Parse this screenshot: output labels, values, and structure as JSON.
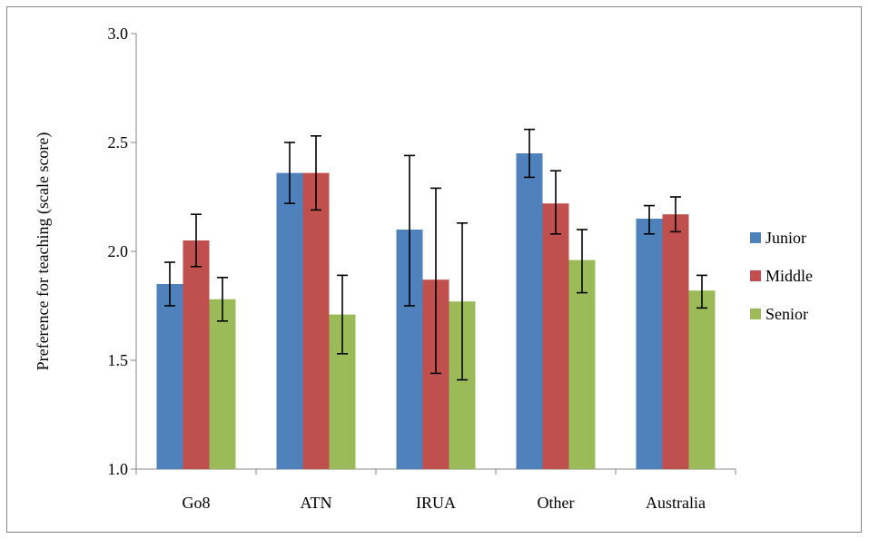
{
  "chart_data": {
    "type": "bar",
    "ylabel": "Preference for teaching  (scale score)",
    "ylim": [
      1.0,
      3.0
    ],
    "yticks": [
      "1.0",
      "1.5",
      "2.0",
      "2.5",
      "3.0"
    ],
    "categories": [
      "Go8",
      "ATN",
      "IRUA",
      "Other",
      "Australia"
    ],
    "series": [
      {
        "name": "Junior",
        "color": "#4f81bd",
        "values": [
          1.85,
          2.36,
          2.1,
          2.45,
          2.15
        ],
        "error_low": [
          1.75,
          2.22,
          1.75,
          2.34,
          2.08
        ],
        "error_high": [
          1.95,
          2.5,
          2.44,
          2.56,
          2.21
        ]
      },
      {
        "name": "Middle",
        "color": "#c0504d",
        "values": [
          2.05,
          2.36,
          1.87,
          2.22,
          2.17
        ],
        "error_low": [
          1.93,
          2.19,
          1.44,
          2.08,
          2.09
        ],
        "error_high": [
          2.17,
          2.53,
          2.29,
          2.37,
          2.25
        ]
      },
      {
        "name": "Senior",
        "color": "#9bbb59",
        "values": [
          1.78,
          1.71,
          1.77,
          1.96,
          1.82
        ],
        "error_low": [
          1.68,
          1.53,
          1.41,
          1.81,
          1.74
        ],
        "error_high": [
          1.88,
          1.89,
          2.13,
          2.1,
          1.89
        ]
      }
    ],
    "grid": false,
    "legend_position": "right"
  }
}
